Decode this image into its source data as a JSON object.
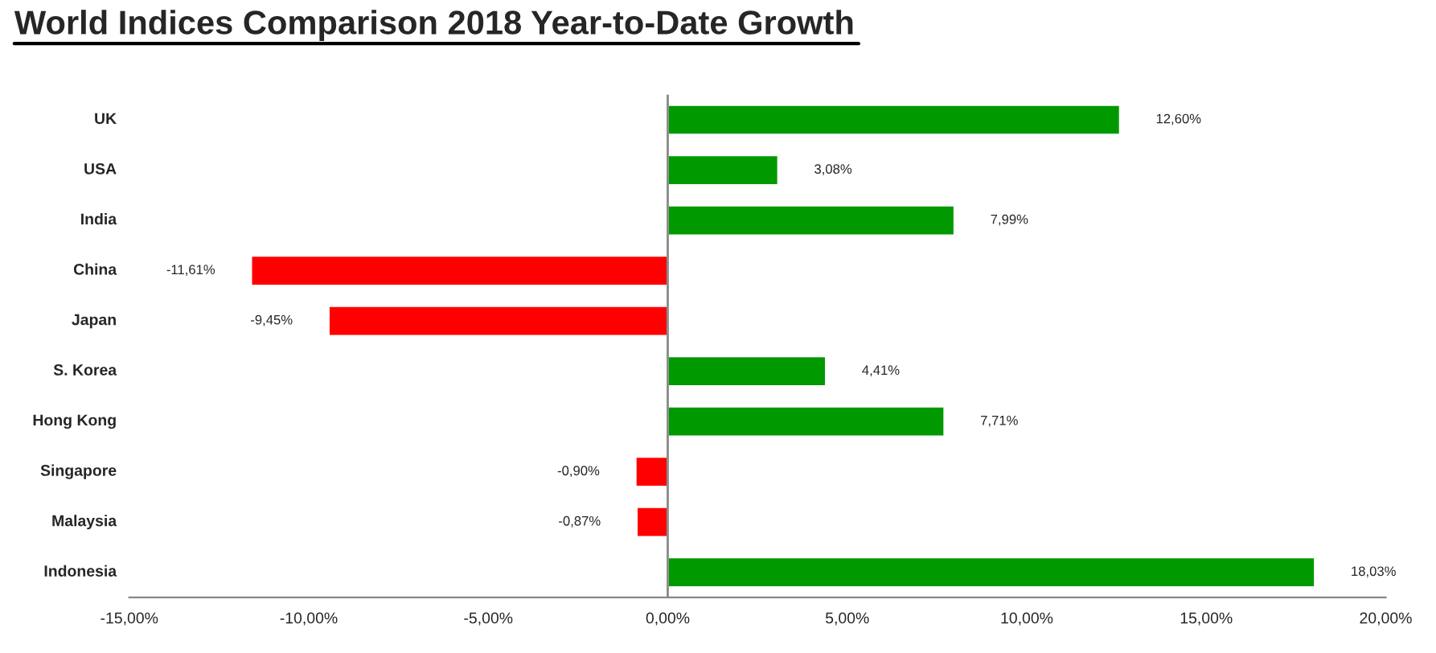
{
  "chart_data": {
    "type": "bar",
    "orientation": "horizontal",
    "title": "World Indices Comparison 2018 Year-to-Date Growth",
    "categories": [
      "UK",
      "USA",
      "India",
      "China",
      "Japan",
      "S. Korea",
      "Hong Kong",
      "Singapore",
      "Malaysia",
      "Indonesia"
    ],
    "values": [
      12.6,
      3.08,
      7.99,
      -11.61,
      -9.45,
      4.41,
      7.71,
      -0.9,
      -0.87,
      18.03
    ],
    "value_labels": [
      "12,60%",
      "3,08%",
      "7,99%",
      "-11,61%",
      "-9,45%",
      "4,41%",
      "7,71%",
      "-0,90%",
      "-0,87%",
      "18,03%"
    ],
    "colors": [
      "#009900",
      "#009900",
      "#009900",
      "#ff0000",
      "#ff0000",
      "#009900",
      "#009900",
      "#ff0000",
      "#ff0000",
      "#009900"
    ],
    "xlim": [
      -15,
      20
    ],
    "xticks": [
      {
        "value": -15,
        "label": "-15,00%"
      },
      {
        "value": -10,
        "label": "-10,00%"
      },
      {
        "value": -5,
        "label": "-5,00%"
      },
      {
        "value": 0,
        "label": "0,00%"
      },
      {
        "value": 5,
        "label": "5,00%"
      },
      {
        "value": 10,
        "label": "10,00%"
      },
      {
        "value": 15,
        "label": "15,00%"
      },
      {
        "value": 20,
        "label": "20,00%"
      }
    ],
    "ref_lines": [
      {
        "axis": "x",
        "value": 0,
        "color": "#888888"
      }
    ],
    "grid": false,
    "legend": false
  }
}
